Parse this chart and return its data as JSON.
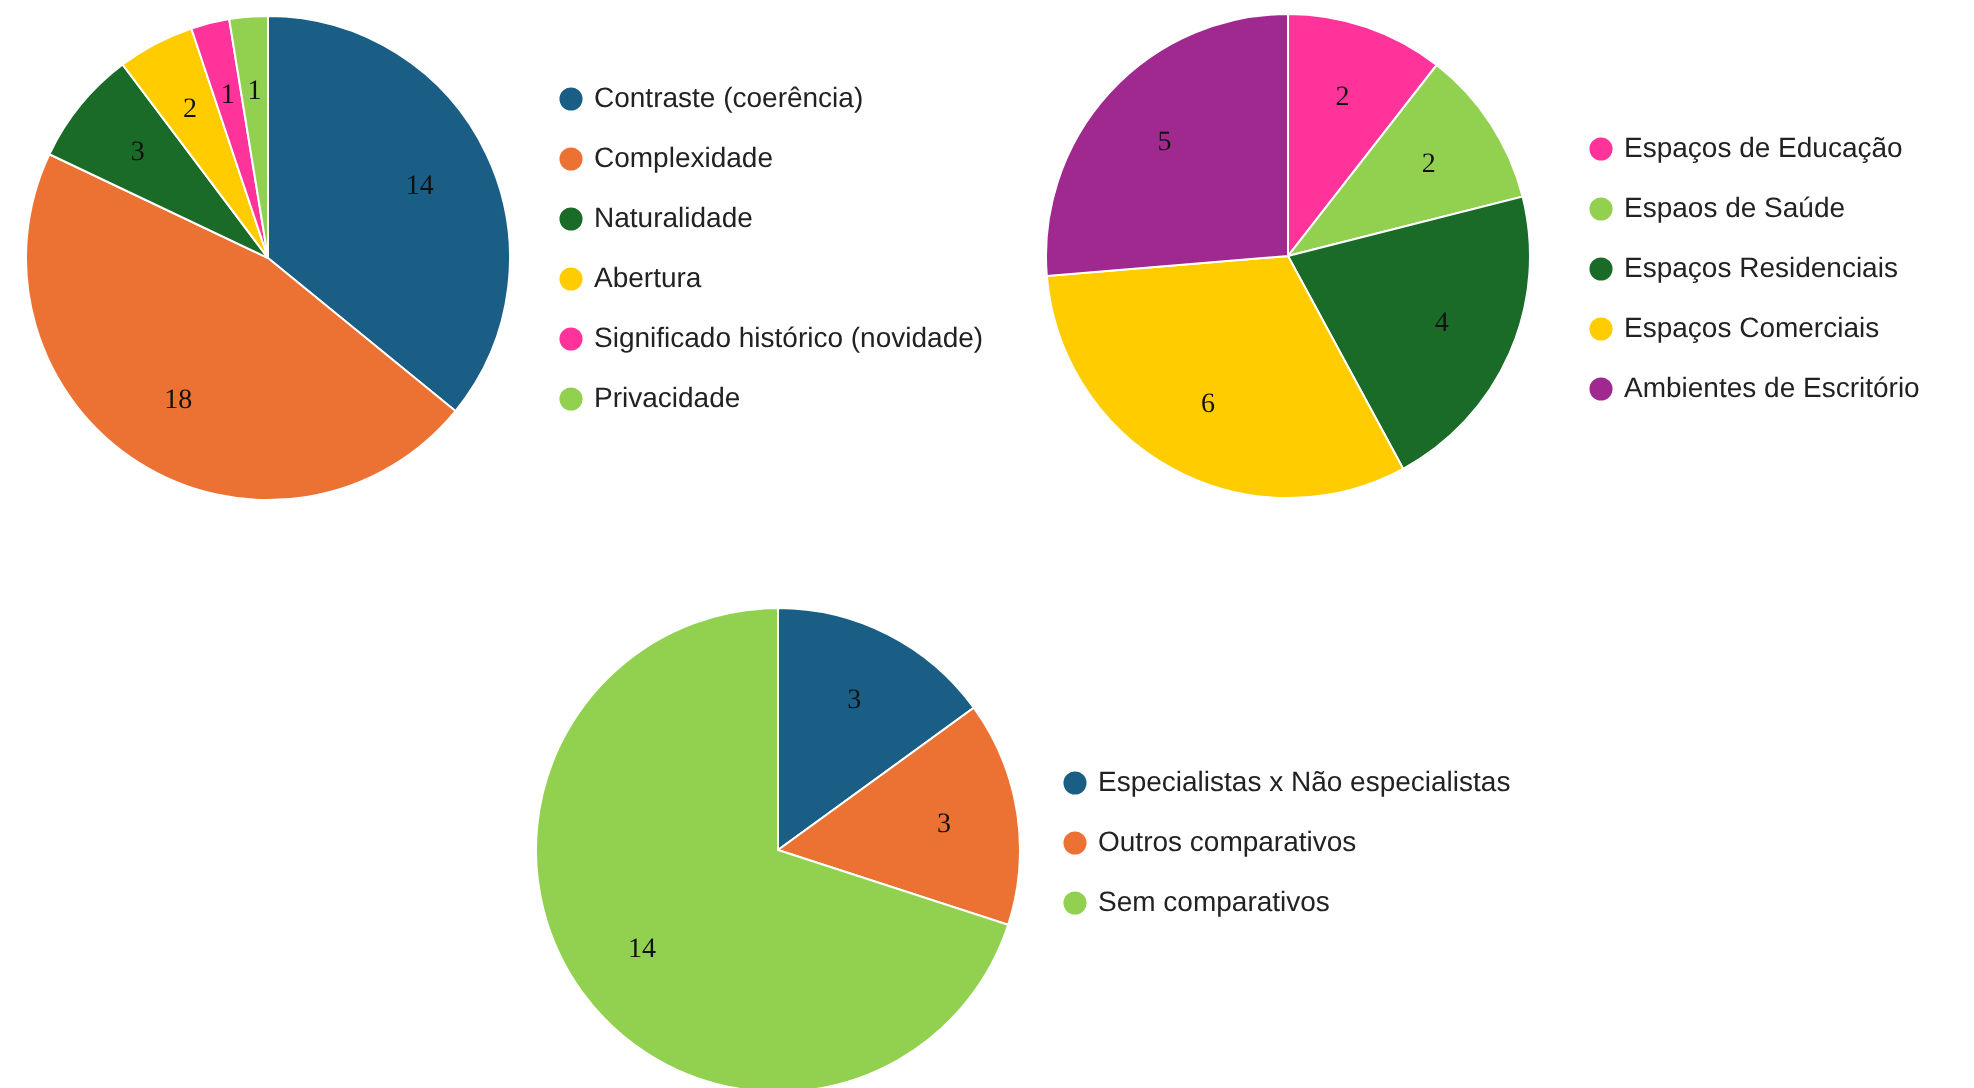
{
  "chart_data": [
    {
      "type": "pie",
      "categories": [
        "Contraste (coerência)",
        "Complexidade",
        "Naturalidade",
        "Abertura",
        "Significado histórico (novidade)",
        "Privacidade"
      ],
      "values": [
        14,
        18,
        3,
        2,
        1,
        1
      ],
      "colors": [
        "#1a5e85",
        "#ec7234",
        "#1a6b27",
        "#ffcc00",
        "#ff3399",
        "#92d050"
      ],
      "data_labels": true,
      "legend": "right"
    },
    {
      "type": "pie",
      "categories": [
        "Espaços de Educação",
        "Espaos de Saúde",
        "Espaços Residenciais",
        "Espaços Comerciais",
        "Ambientes de Escritório"
      ],
      "values": [
        2,
        2,
        4,
        6,
        5
      ],
      "colors": [
        "#ff3399",
        "#92d050",
        "#1a6b27",
        "#ffcc00",
        "#a0298f"
      ],
      "data_labels": true,
      "legend": "right"
    },
    {
      "type": "pie",
      "categories": [
        "Especialistas x Não especialistas",
        "Outros comparativos",
        "Sem comparativos"
      ],
      "values": [
        3,
        3,
        14
      ],
      "colors": [
        "#1a5e85",
        "#ec7234",
        "#92d050"
      ],
      "data_labels": true,
      "legend": "right"
    }
  ]
}
